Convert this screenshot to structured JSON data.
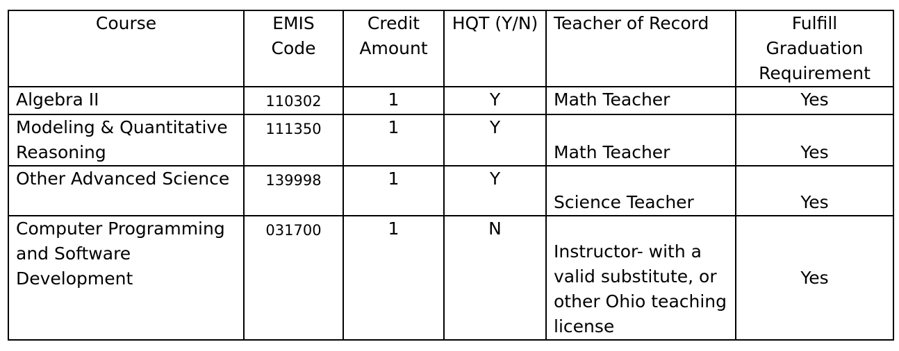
{
  "headers": [
    "Course",
    "EMIS Code",
    "Credit Amount",
    "HQT (Y/N)",
    "Teacher of Record",
    "Fulfill Graduation Requirement"
  ],
  "rows": [
    {
      "course": "Algebra II",
      "emis": "110302",
      "credit": "1",
      "hqt": "Y",
      "teacher": "Math Teacher",
      "fulfill": "Yes"
    },
    {
      "course": "Modeling & Quantitative Reasoning",
      "emis": "111350",
      "credit": "1",
      "hqt": "Y",
      "teacher": "Math Teacher",
      "fulfill": "Yes"
    },
    {
      "course": "Other Advanced Science",
      "emis": "139998",
      "credit": "1",
      "hqt": "Y",
      "teacher": "Science Teacher",
      "fulfill": "Yes"
    },
    {
      "course": "Computer Programming and Software Development",
      "emis": "031700",
      "credit": "1",
      "hqt": "N",
      "teacher": "Instructor- with a valid substitute, or other Ohio teaching license",
      "fulfill": "Yes"
    }
  ]
}
